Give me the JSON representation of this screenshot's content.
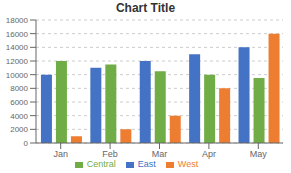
{
  "chart_data": {
    "type": "bar",
    "title": "Chart Title",
    "categories": [
      "Jan",
      "Feb",
      "Mar",
      "Apr",
      "May"
    ],
    "series": [
      {
        "name": "East",
        "color": "#4472C4",
        "values": [
          10000,
          11000,
          12000,
          13000,
          14000
        ]
      },
      {
        "name": "Central",
        "color": "#70AD47",
        "values": [
          12000,
          11500,
          10500,
          10000,
          9500
        ]
      },
      {
        "name": "West",
        "color": "#ED7D31",
        "values": [
          1000,
          2000,
          4000,
          8000,
          16000
        ]
      }
    ],
    "ylim": [
      0,
      18000
    ],
    "yticks": [
      0,
      2000,
      4000,
      6000,
      8000,
      10000,
      12000,
      14000,
      16000,
      18000
    ],
    "grid": true,
    "legend": "bottom"
  }
}
